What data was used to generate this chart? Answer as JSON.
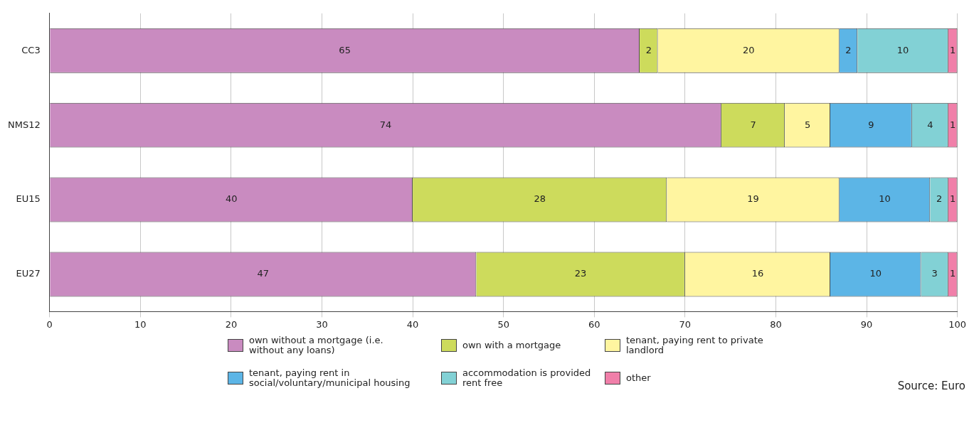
{
  "chart_data": {
    "type": "bar",
    "orientation": "horizontal",
    "stacked": true,
    "data_labels": true,
    "categories": [
      "CC3",
      "NMS12",
      "EU15",
      "EU27"
    ],
    "series": [
      {
        "name": "own without a mortgage (i.e. without any loans)",
        "color": "#c98bc0",
        "values": [
          65,
          74,
          40,
          47
        ]
      },
      {
        "name": "own with a mortgage",
        "color": "#cddb5c",
        "values": [
          2,
          7,
          28,
          23
        ]
      },
      {
        "name": "tenant, paying rent to private landlord",
        "color": "#fff5a0",
        "values": [
          20,
          5,
          19,
          16
        ]
      },
      {
        "name": "tenant, paying rent in social/voluntary/municipal housing",
        "color": "#5cb5e6",
        "values": [
          2,
          9,
          10,
          10
        ]
      },
      {
        "name": "accommodation is provided rent free",
        "color": "#82d1d5",
        "values": [
          10,
          4,
          2,
          3
        ]
      },
      {
        "name": "other",
        "color": "#f07fa9",
        "values": [
          1,
          1,
          1,
          1
        ]
      }
    ],
    "xlim": [
      0,
      100
    ],
    "xticks": [
      0,
      10,
      20,
      30,
      40,
      50,
      60,
      70,
      80,
      90,
      100
    ],
    "grid": "x",
    "legend": "bottom",
    "annotations": [
      "Source: Euro"
    ]
  }
}
